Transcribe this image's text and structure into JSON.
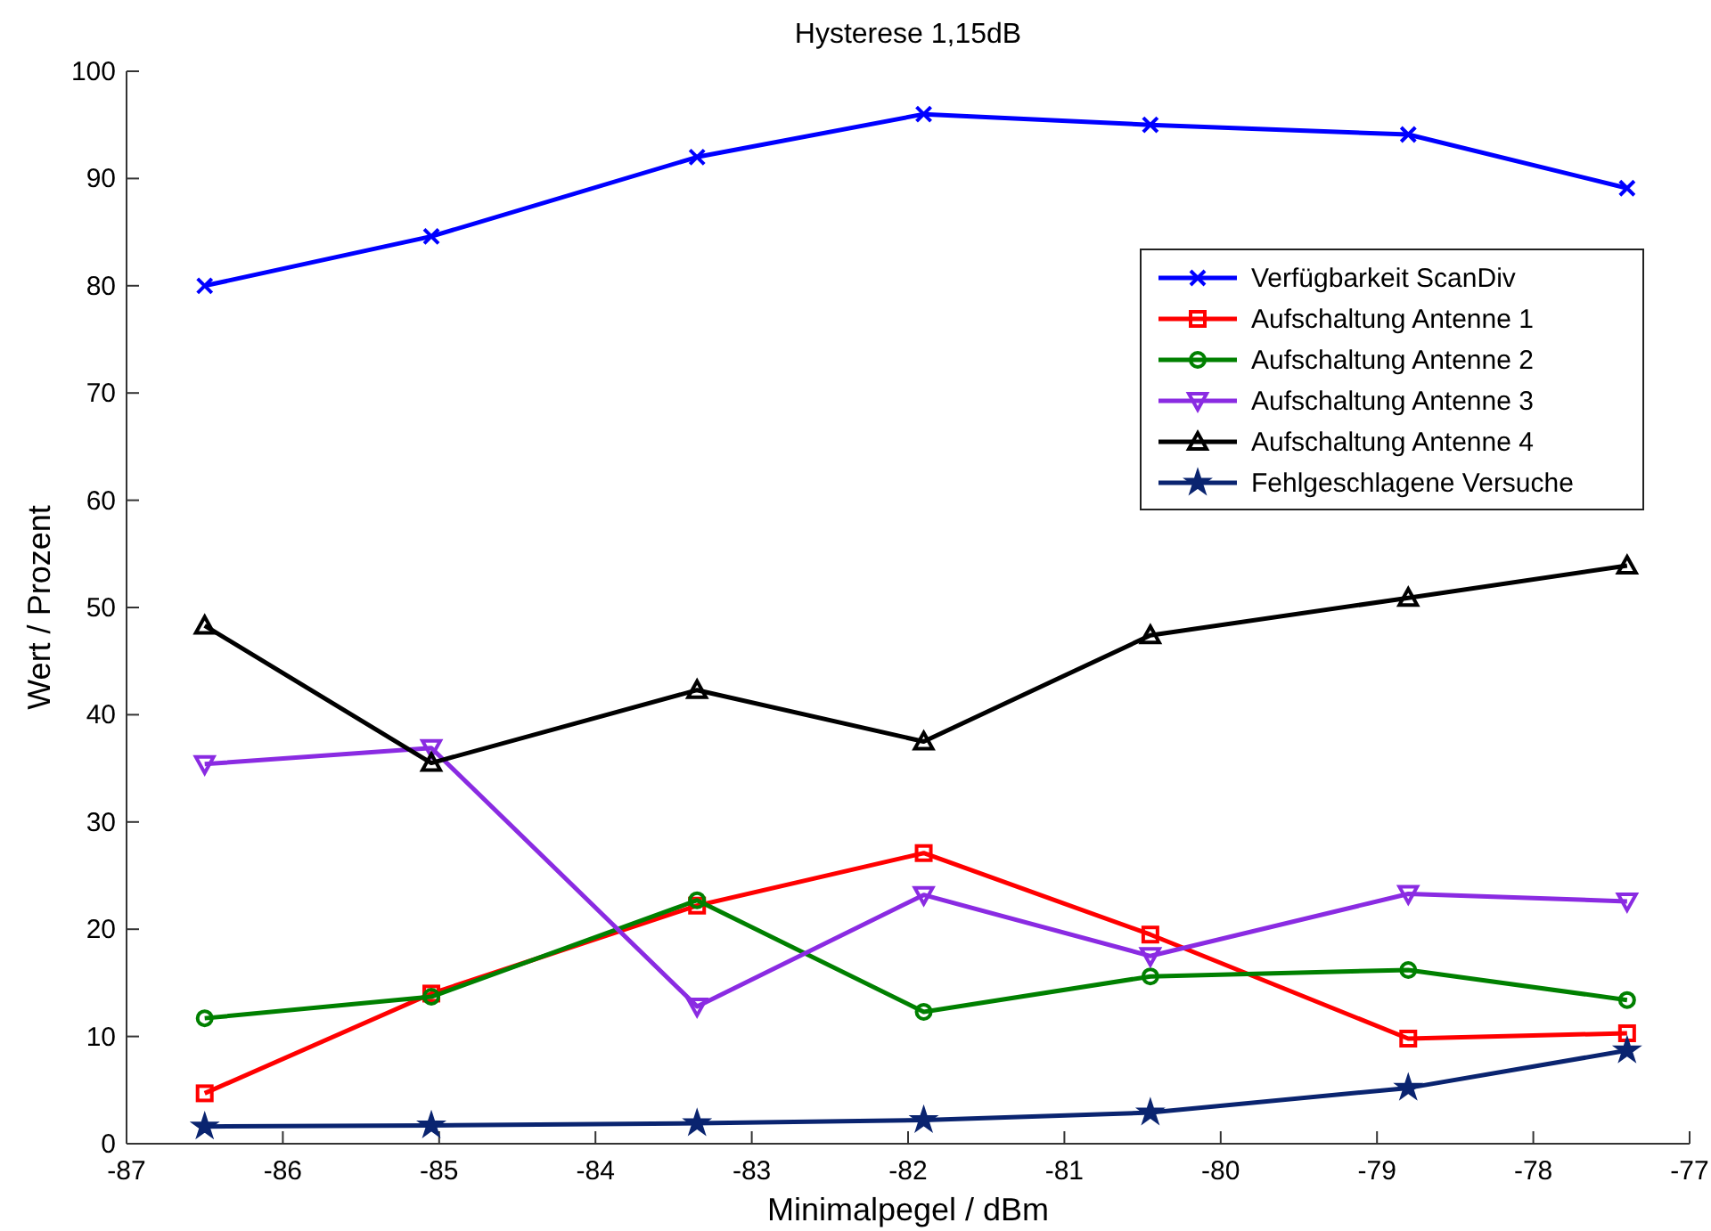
{
  "chart_data": {
    "type": "line",
    "title": "Hysterese 1,15dB",
    "xlabel": "Minimalpegel / dBm",
    "ylabel": "Wert / Prozent",
    "x": [
      -86.5,
      -85.05,
      -83.35,
      -81.9,
      -80.45,
      -78.8,
      -77.4
    ],
    "series": [
      {
        "name": "Verfügbarkeit ScanDiv",
        "color": "#0000ff",
        "marker": "cross",
        "values": [
          80,
          84.6,
          92,
          96,
          95,
          94.1,
          89.1
        ]
      },
      {
        "name": "Aufschaltung Antenne 1",
        "color": "#ff0000",
        "marker": "square",
        "values": [
          4.7,
          14,
          22.2,
          27.1,
          19.5,
          9.8,
          10.3
        ]
      },
      {
        "name": "Aufschaltung Antenne 2",
        "color": "#008000",
        "marker": "circle",
        "values": [
          11.7,
          13.7,
          22.7,
          12.3,
          15.6,
          16.2,
          13.4
        ]
      },
      {
        "name": "Aufschaltung Antenne 3",
        "color": "#8a2be2",
        "marker": "triangle-down",
        "values": [
          35.4,
          36.9,
          12.8,
          23.2,
          17.5,
          23.3,
          22.6
        ]
      },
      {
        "name": "Aufschaltung Antenne 4",
        "color": "#000000",
        "marker": "triangle",
        "values": [
          48.3,
          35.5,
          42.3,
          37.5,
          47.4,
          50.9,
          53.9
        ]
      },
      {
        "name": "Fehlgeschlagene Versuche",
        "color": "#0a2470",
        "marker": "star",
        "values": [
          1.6,
          1.7,
          1.9,
          2.2,
          2.9,
          5.2,
          8.7
        ]
      }
    ],
    "xlim": [
      -87,
      -77
    ],
    "xticks": [
      -87,
      -86,
      -85,
      -84,
      -83,
      -82,
      -81,
      -80,
      -79,
      -78,
      -77
    ],
    "ylim": [
      0,
      100
    ],
    "yticks": [
      0,
      10,
      20,
      30,
      40,
      50,
      60,
      70,
      80,
      90,
      100
    ],
    "grid": false,
    "legend": "right",
    "line_style": "solid"
  }
}
